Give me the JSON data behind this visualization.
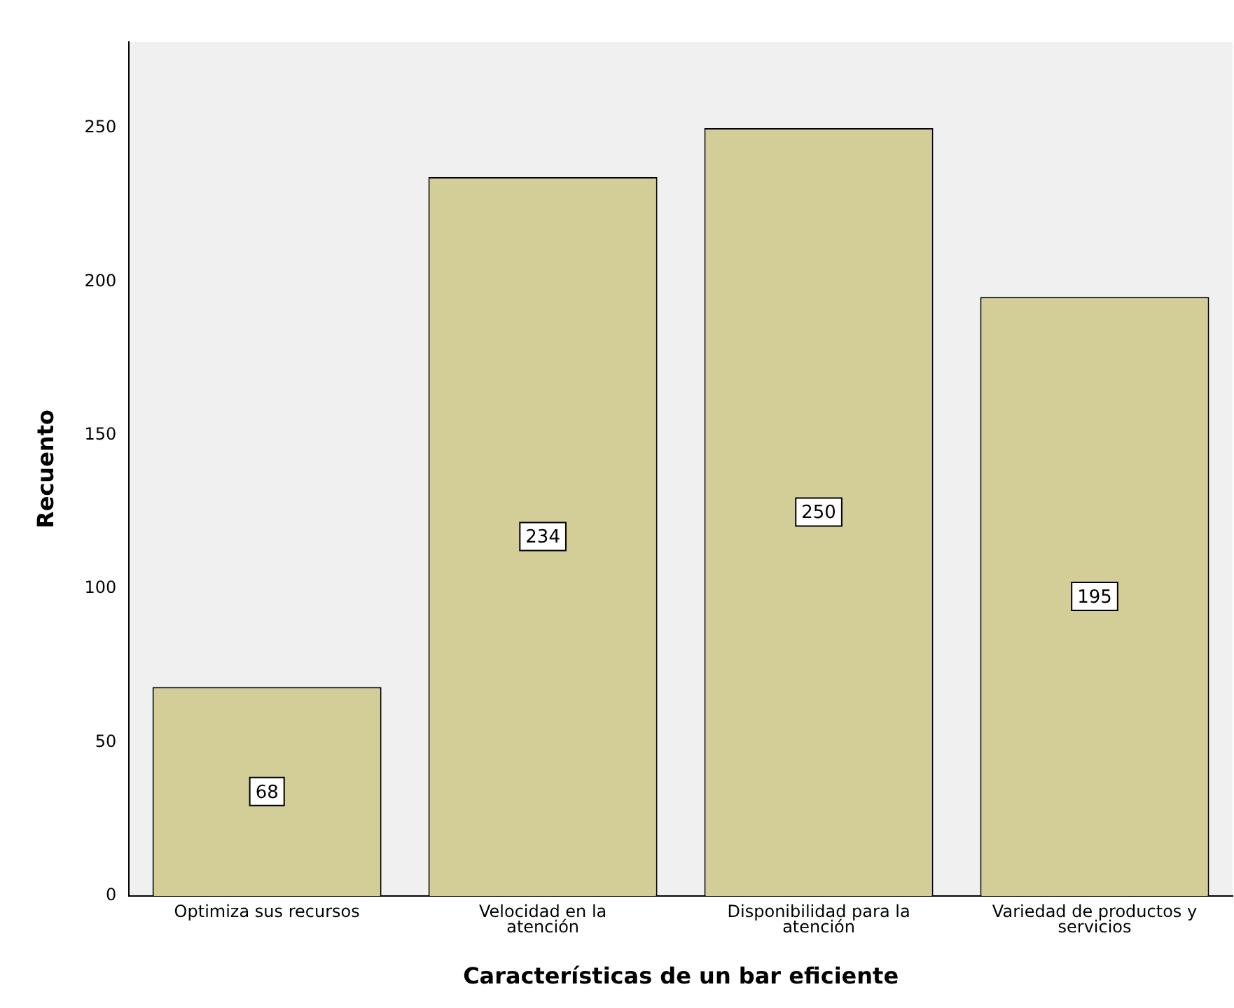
{
  "chart_data": {
    "type": "bar",
    "xlabel": "Características de un bar eficiente",
    "ylabel": "Recuento",
    "categories": [
      "Optimiza sus recursos",
      "Velocidad en la atención",
      "Disponibilidad para la atención",
      "Variedad de productos y servicios"
    ],
    "values": [
      68,
      234,
      250,
      195
    ],
    "color": "#d3ce97",
    "ylim": [
      0,
      278
    ],
    "yticks": [
      0,
      50,
      100,
      150,
      200,
      250
    ],
    "grid": false,
    "legend": false,
    "data_labels": true
  }
}
